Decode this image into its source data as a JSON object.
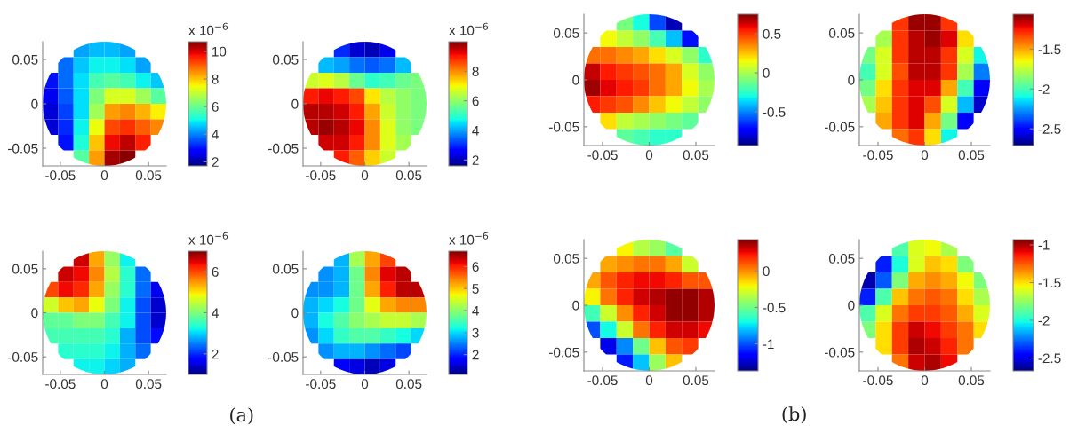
{
  "chart_data": [
    {
      "type": "heatmap",
      "clabel": "x 10$^{−6}$",
      "x": [
        -0.06125,
        -0.04375,
        -0.02625,
        -0.00875,
        0.00875,
        0.02625,
        0.04375,
        0.06125
      ],
      "y": [
        0.06125,
        0.04375,
        0.02625,
        0.00875,
        -0.00875,
        -0.02625,
        -0.04375,
        -0.06125
      ],
      "xlim": [
        -0.07,
        0.07
      ],
      "ylim": [
        -0.07,
        0.07
      ],
      "xticks": [
        -0.05,
        0,
        0.05
      ],
      "yticks": [
        -0.05,
        0,
        0.05
      ],
      "clim": [
        1.7,
        10.7
      ],
      "cticks": [
        2,
        4,
        6,
        8,
        10
      ],
      "cells": [
        [
          null,
          null,
          4.3,
          4.5,
          4.5,
          4.3,
          null,
          null
        ],
        [
          null,
          3.8,
          4.6,
          5.0,
          5.0,
          4.8,
          4.3,
          null
        ],
        [
          3.0,
          3.8,
          4.8,
          5.6,
          5.8,
          5.6,
          5.0,
          4.6
        ],
        [
          2.6,
          3.6,
          4.8,
          6.2,
          7.2,
          7.2,
          6.6,
          5.8
        ],
        [
          2.4,
          3.4,
          4.8,
          6.6,
          8.4,
          8.6,
          8.2,
          7.6
        ],
        [
          2.4,
          3.2,
          5.0,
          7.4,
          9.2,
          9.4,
          9.0,
          8.6
        ],
        [
          null,
          3.0,
          5.2,
          8.0,
          9.8,
          10.2,
          9.6,
          null
        ],
        [
          null,
          null,
          5.8,
          8.4,
          10.4,
          10.6,
          null,
          null
        ]
      ]
    },
    {
      "type": "heatmap",
      "clabel": "x 10$^{−6}$",
      "x": [
        -0.06125,
        -0.04375,
        -0.02625,
        -0.00875,
        0.00875,
        0.02625,
        0.04375,
        0.06125
      ],
      "y": [
        0.06125,
        0.04375,
        0.02625,
        0.00875,
        -0.00875,
        -0.02625,
        -0.04375,
        -0.06125
      ],
      "xlim": [
        -0.07,
        0.07
      ],
      "ylim": [
        -0.07,
        0.07
      ],
      "xticks": [
        -0.05,
        0,
        0.05
      ],
      "yticks": [
        -0.05,
        0,
        0.05
      ],
      "clim": [
        1.6,
        10.0
      ],
      "cticks": [
        2,
        4,
        6,
        8
      ],
      "cells": [
        [
          null,
          null,
          3.0,
          2.2,
          2.0,
          2.4,
          null,
          null
        ],
        [
          null,
          4.2,
          4.0,
          3.6,
          3.4,
          3.6,
          4.2,
          null
        ],
        [
          6.6,
          6.8,
          6.4,
          5.6,
          5.0,
          5.2,
          5.6,
          5.8
        ],
        [
          9.0,
          9.2,
          9.0,
          8.6,
          7.2,
          6.4,
          6.0,
          5.8
        ],
        [
          9.6,
          9.6,
          9.4,
          9.0,
          7.8,
          6.6,
          6.0,
          5.8
        ],
        [
          9.6,
          9.8,
          9.6,
          9.2,
          8.0,
          6.8,
          6.0,
          5.8
        ],
        [
          null,
          9.4,
          9.4,
          9.0,
          8.0,
          6.8,
          6.2,
          null
        ],
        [
          null,
          null,
          9.0,
          8.4,
          7.4,
          6.6,
          null,
          null
        ]
      ]
    },
    {
      "type": "heatmap",
      "x": [
        -0.06125,
        -0.04375,
        -0.02625,
        -0.00875,
        0.00875,
        0.02625,
        0.04375,
        0.06125
      ],
      "y": [
        0.06125,
        0.04375,
        0.02625,
        0.00875,
        -0.00875,
        -0.02625,
        -0.04375,
        -0.06125
      ],
      "xlim": [
        -0.07,
        0.07
      ],
      "ylim": [
        -0.07,
        0.07
      ],
      "xticks": [
        -0.05,
        0,
        0.05
      ],
      "yticks": [
        -0.05,
        0,
        0.05
      ],
      "clim": [
        -0.93,
        0.75
      ],
      "cticks": [
        -0.5,
        0,
        0.5
      ],
      "cells": [
        [
          null,
          null,
          -0.1,
          -0.3,
          -0.6,
          -0.85,
          null,
          null
        ],
        [
          null,
          0.15,
          0.05,
          -0.05,
          -0.2,
          -0.4,
          -0.7,
          null
        ],
        [
          0.4,
          0.4,
          0.35,
          0.3,
          0.2,
          0.1,
          -0.05,
          -0.25
        ],
        [
          0.65,
          0.55,
          0.5,
          0.45,
          0.4,
          0.3,
          0.1,
          -0.05
        ],
        [
          0.7,
          0.6,
          0.55,
          0.5,
          0.4,
          0.3,
          0.15,
          0.0
        ],
        [
          0.55,
          0.5,
          0.45,
          0.35,
          0.25,
          0.15,
          0.05,
          -0.05
        ],
        [
          null,
          0.2,
          0.05,
          0.0,
          -0.05,
          -0.1,
          -0.15,
          null
        ],
        [
          null,
          null,
          -0.15,
          -0.2,
          -0.25,
          -0.25,
          null,
          null
        ]
      ]
    },
    {
      "type": "heatmap",
      "x": [
        -0.06125,
        -0.04375,
        -0.02625,
        -0.00875,
        0.00875,
        0.02625,
        0.04375,
        0.06125
      ],
      "y": [
        0.06125,
        0.04375,
        0.02625,
        0.00875,
        -0.00875,
        -0.02625,
        -0.04375,
        -0.06125
      ],
      "xlim": [
        -0.07,
        0.07
      ],
      "ylim": [
        -0.07,
        0.07
      ],
      "xticks": [
        -0.05,
        0,
        0.05
      ],
      "yticks": [
        -0.05,
        0,
        0.05
      ],
      "clim": [
        -2.71,
        -1.06
      ],
      "cticks": [
        -2.5,
        -2,
        -1.5
      ],
      "cells": [
        [
          null,
          null,
          -1.3,
          -1.1,
          -1.1,
          -1.3,
          null,
          null
        ],
        [
          null,
          -1.8,
          -1.3,
          -1.15,
          -1.1,
          -1.2,
          -1.6,
          null
        ],
        [
          -1.9,
          -1.7,
          -1.3,
          -1.15,
          -1.15,
          -1.3,
          -1.7,
          -2.1
        ],
        [
          -2.0,
          -1.7,
          -1.35,
          -1.15,
          -1.15,
          -1.3,
          -1.8,
          -2.3
        ],
        [
          -1.9,
          -1.6,
          -1.3,
          -1.2,
          -1.2,
          -1.5,
          -2.0,
          -2.5
        ],
        [
          -1.8,
          -1.55,
          -1.3,
          -1.2,
          -1.35,
          -1.7,
          -2.2,
          -2.6
        ],
        [
          null,
          -1.5,
          -1.3,
          -1.2,
          -1.5,
          -1.9,
          -2.5,
          null
        ],
        [
          null,
          null,
          -1.4,
          -1.3,
          -1.6,
          -2.1,
          null,
          null
        ]
      ]
    },
    {
      "type": "heatmap",
      "clabel": "x 10$^{−6}$",
      "annotations": [
        "(a)"
      ],
      "x": [
        -0.06125,
        -0.04375,
        -0.02625,
        -0.00875,
        0.00875,
        0.02625,
        0.04375,
        0.06125
      ],
      "y": [
        0.06125,
        0.04375,
        0.02625,
        0.00875,
        -0.00875,
        -0.02625,
        -0.04375,
        -0.06125
      ],
      "xlim": [
        -0.07,
        0.07
      ],
      "ylim": [
        -0.07,
        0.07
      ],
      "xticks": [
        -0.05,
        0,
        0.05
      ],
      "yticks": [
        -0.05,
        0,
        0.05
      ],
      "clim": [
        1.0,
        7.0
      ],
      "cticks": [
        2,
        4,
        6
      ],
      "cells": [
        [
          null,
          null,
          6.6,
          5.4,
          4.2,
          3.2,
          null,
          null
        ],
        [
          null,
          6.6,
          6.4,
          5.6,
          4.4,
          3.4,
          2.4,
          null
        ],
        [
          6.0,
          6.4,
          6.2,
          5.4,
          4.2,
          3.4,
          2.4,
          1.6
        ],
        [
          4.6,
          5.2,
          5.4,
          4.8,
          4.0,
          3.2,
          2.2,
          1.4
        ],
        [
          3.8,
          3.8,
          4.0,
          4.0,
          3.6,
          3.2,
          2.2,
          1.4
        ],
        [
          3.6,
          3.6,
          3.6,
          3.6,
          3.4,
          2.8,
          2.2,
          1.8
        ],
        [
          null,
          3.4,
          3.4,
          3.4,
          3.2,
          2.8,
          2.4,
          null
        ],
        [
          null,
          null,
          3.2,
          3.2,
          3.0,
          2.8,
          null,
          null
        ]
      ]
    },
    {
      "type": "heatmap",
      "clabel": "x 10$^{−6}$",
      "x": [
        -0.06125,
        -0.04375,
        -0.02625,
        -0.00875,
        0.00875,
        0.02625,
        0.04375,
        0.06125
      ],
      "y": [
        0.06125,
        0.04375,
        0.02625,
        0.00875,
        -0.00875,
        -0.02625,
        -0.04375,
        -0.06125
      ],
      "xlim": [
        -0.07,
        0.07
      ],
      "ylim": [
        -0.07,
        0.07
      ],
      "xticks": [
        -0.05,
        0,
        0.05
      ],
      "yticks": [
        -0.05,
        0,
        0.05
      ],
      "clim": [
        1.1,
        6.7
      ],
      "cticks": [
        2,
        3,
        4,
        5,
        6
      ],
      "cells": [
        [
          null,
          null,
          2.8,
          4.2,
          5.2,
          5.8,
          null,
          null
        ],
        [
          null,
          2.6,
          2.8,
          3.8,
          5.4,
          6.2,
          6.4,
          null
        ],
        [
          2.6,
          2.6,
          2.8,
          3.8,
          5.2,
          6.0,
          6.4,
          6.4
        ],
        [
          2.8,
          3.0,
          3.2,
          3.8,
          4.6,
          5.2,
          5.4,
          5.4
        ],
        [
          2.8,
          3.2,
          3.6,
          4.0,
          4.2,
          4.4,
          4.4,
          4.2
        ],
        [
          2.6,
          3.0,
          3.4,
          3.6,
          3.6,
          3.4,
          3.2,
          3.0
        ],
        [
          null,
          2.6,
          2.8,
          2.8,
          2.6,
          2.4,
          2.2,
          null
        ],
        [
          null,
          null,
          1.8,
          1.6,
          1.4,
          1.6,
          null,
          null
        ]
      ]
    },
    {
      "type": "heatmap",
      "annotations": [
        "(b)"
      ],
      "x": [
        -0.06125,
        -0.04375,
        -0.02625,
        -0.00875,
        0.00875,
        0.02625,
        0.04375,
        0.06125
      ],
      "y": [
        0.06125,
        0.04375,
        0.02625,
        0.00875,
        -0.00875,
        -0.02625,
        -0.04375,
        -0.06125
      ],
      "xlim": [
        -0.07,
        0.07
      ],
      "ylim": [
        -0.07,
        0.07
      ],
      "xticks": [
        -0.05,
        0,
        0.05
      ],
      "yticks": [
        -0.05,
        0,
        0.05
      ],
      "clim": [
        -1.37,
        0.43
      ],
      "cticks": [
        -1,
        -0.5,
        0
      ],
      "cells": [
        [
          null,
          null,
          -0.2,
          -0.35,
          -0.4,
          -0.55,
          null,
          null
        ],
        [
          null,
          -0.05,
          0.0,
          0.05,
          0.05,
          -0.05,
          -0.3,
          null
        ],
        [
          -0.05,
          0.1,
          0.2,
          0.25,
          0.25,
          0.2,
          0.1,
          0.1
        ],
        [
          -0.2,
          0.05,
          0.2,
          0.3,
          0.35,
          0.4,
          0.4,
          0.35
        ],
        [
          -0.6,
          -0.3,
          0.0,
          0.2,
          0.3,
          0.4,
          0.4,
          0.35
        ],
        [
          -1.0,
          -0.7,
          -0.3,
          0.05,
          0.2,
          0.3,
          0.3,
          0.25
        ],
        [
          null,
          -1.2,
          -0.9,
          -0.5,
          -0.1,
          0.1,
          0.15,
          null
        ],
        [
          null,
          null,
          -1.1,
          -0.8,
          -0.4,
          -0.1,
          null,
          null
        ]
      ]
    },
    {
      "type": "heatmap",
      "x": [
        -0.06125,
        -0.04375,
        -0.02625,
        -0.00875,
        0.00875,
        0.02625,
        0.04375,
        0.06125
      ],
      "y": [
        0.06125,
        0.04375,
        0.02625,
        0.00875,
        -0.00875,
        -0.02625,
        -0.04375,
        -0.06125
      ],
      "xlim": [
        -0.07,
        0.07
      ],
      "ylim": [
        -0.07,
        0.07
      ],
      "xticks": [
        -0.05,
        0,
        0.05
      ],
      "yticks": [
        -0.05,
        0,
        0.05
      ],
      "clim": [
        -2.67,
        -0.93
      ],
      "cticks": [
        -2.5,
        -2,
        -1.5,
        -1
      ],
      "cells": [
        [
          null,
          null,
          -1.9,
          -1.6,
          -1.55,
          -1.7,
          null,
          null
        ],
        [
          null,
          -2.4,
          -2.0,
          -1.6,
          -1.45,
          -1.5,
          -1.8,
          null
        ],
        [
          -2.6,
          -2.3,
          -1.8,
          -1.4,
          -1.35,
          -1.4,
          -1.55,
          -1.8
        ],
        [
          -2.4,
          -1.9,
          -1.45,
          -1.3,
          -1.25,
          -1.3,
          -1.5,
          -1.7
        ],
        [
          -1.9,
          -1.6,
          -1.3,
          -1.2,
          -1.2,
          -1.25,
          -1.4,
          -1.6
        ],
        [
          -1.8,
          -1.5,
          -1.2,
          -1.05,
          -1.1,
          -1.2,
          -1.3,
          -1.5
        ],
        [
          null,
          -1.5,
          -1.2,
          -1.0,
          -1.05,
          -1.15,
          -1.3,
          null
        ],
        [
          null,
          null,
          -1.3,
          -1.05,
          -1.0,
          -1.1,
          null,
          null
        ]
      ]
    }
  ]
}
